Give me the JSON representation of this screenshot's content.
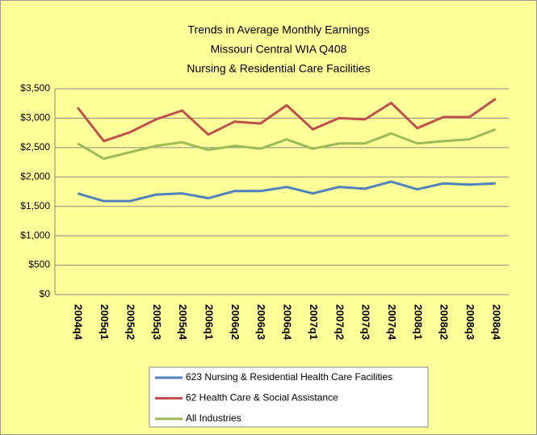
{
  "chart_data": {
    "type": "line",
    "title": [
      "Trends in Average Monthly Earnings",
      "Missouri Central WIA Q408",
      "Nursing & Residential Care Facilities"
    ],
    "categories": [
      "2004q4",
      "2005q1",
      "2005q2",
      "2005q3",
      "2005q4",
      "2006q1",
      "2006q2",
      "2006q3",
      "2006q4",
      "2007q1",
      "2007q2",
      "2007q3",
      "2007q4",
      "2008q1",
      "2008q2",
      "2008q3",
      "2008q4"
    ],
    "series": [
      {
        "name": "623 Nursing & Residential Health Care Facilities",
        "color": "#4f81bd",
        "values": [
          1720,
          1590,
          1590,
          1700,
          1720,
          1640,
          1760,
          1760,
          1830,
          1720,
          1830,
          1800,
          1920,
          1790,
          1890,
          1870,
          1890
        ]
      },
      {
        "name": "62 Health Care & Social Assistance",
        "color": "#c0504d",
        "values": [
          3180,
          2610,
          2760,
          2980,
          3130,
          2720,
          2940,
          2910,
          3220,
          2810,
          3000,
          2980,
          3260,
          2830,
          3020,
          3020,
          3330
        ]
      },
      {
        "name": "All Industries",
        "color": "#9bbb59",
        "values": [
          2570,
          2310,
          2420,
          2530,
          2590,
          2460,
          2530,
          2480,
          2640,
          2480,
          2570,
          2570,
          2740,
          2570,
          2610,
          2640,
          2810
        ]
      }
    ],
    "ylim": [
      0,
      3500
    ],
    "yticks": [
      {
        "value": 0,
        "label": "$0"
      },
      {
        "value": 500,
        "label": "$500"
      },
      {
        "value": 1000,
        "label": "$1,000"
      },
      {
        "value": 1500,
        "label": "$1,500"
      },
      {
        "value": 2000,
        "label": "$2,000"
      },
      {
        "value": 2500,
        "label": "$2,500"
      },
      {
        "value": 3000,
        "label": "$3,000"
      },
      {
        "value": 3500,
        "label": "$3,500"
      }
    ],
    "grid": true,
    "legend": "bottom"
  }
}
